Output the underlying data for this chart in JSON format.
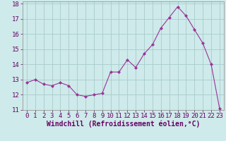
{
  "x": [
    0,
    1,
    2,
    3,
    4,
    5,
    6,
    7,
    8,
    9,
    10,
    11,
    12,
    13,
    14,
    15,
    16,
    17,
    18,
    19,
    20,
    21,
    22,
    23
  ],
  "y": [
    12.8,
    13.0,
    12.7,
    12.6,
    12.8,
    12.6,
    12.0,
    11.9,
    12.0,
    12.1,
    13.5,
    13.5,
    14.3,
    13.8,
    14.7,
    15.3,
    16.4,
    17.1,
    17.8,
    17.2,
    16.3,
    15.4,
    14.0,
    11.1
  ],
  "line_color": "#993399",
  "marker": "D",
  "marker_size": 2.0,
  "bg_color": "#ceeaea",
  "grid_color": "#aacccc",
  "xlabel": "Windchill (Refroidissement éolien,°C)",
  "ylim": [
    11,
    18
  ],
  "xlim": [
    -0.5,
    23.5
  ],
  "yticks": [
    11,
    12,
    13,
    14,
    15,
    16,
    17,
    18
  ],
  "xticks": [
    0,
    1,
    2,
    3,
    4,
    5,
    6,
    7,
    8,
    9,
    10,
    11,
    12,
    13,
    14,
    15,
    16,
    17,
    18,
    19,
    20,
    21,
    22,
    23
  ],
  "tick_label_fontsize": 6.5,
  "xlabel_fontsize": 7.0
}
